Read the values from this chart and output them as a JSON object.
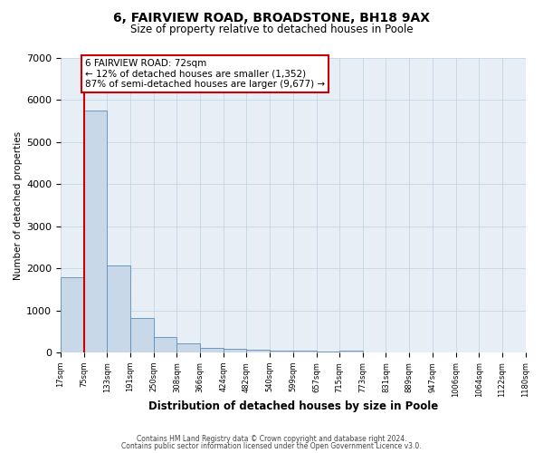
{
  "title": "6, FAIRVIEW ROAD, BROADSTONE, BH18 9AX",
  "subtitle": "Size of property relative to detached houses in Poole",
  "xlabel": "Distribution of detached houses by size in Poole",
  "ylabel": "Number of detached properties",
  "bin_edges": [
    17,
    75,
    133,
    191,
    250,
    308,
    366,
    424,
    482,
    540,
    599,
    657,
    715,
    773,
    831,
    889,
    947,
    1006,
    1064,
    1122,
    1180
  ],
  "bin_labels": [
    "17sqm",
    "75sqm",
    "133sqm",
    "191sqm",
    "250sqm",
    "308sqm",
    "366sqm",
    "424sqm",
    "482sqm",
    "540sqm",
    "599sqm",
    "657sqm",
    "715sqm",
    "773sqm",
    "831sqm",
    "889sqm",
    "947sqm",
    "1006sqm",
    "1064sqm",
    "1122sqm",
    "1180sqm"
  ],
  "bar_heights": [
    1780,
    5760,
    2060,
    820,
    360,
    215,
    115,
    95,
    75,
    50,
    40,
    30,
    55,
    0,
    0,
    0,
    0,
    0,
    0,
    0
  ],
  "bar_color": "#c8d8e8",
  "bar_edge_color": "#5b8db8",
  "property_line_x": 75,
  "property_line_color": "#cc0000",
  "annotation_title": "6 FAIRVIEW ROAD: 72sqm",
  "annotation_line1": "← 12% of detached houses are smaller (1,352)",
  "annotation_line2": "87% of semi-detached houses are larger (9,677) →",
  "annotation_box_color": "#cc0000",
  "annotation_box_fill": "#ffffff",
  "ylim": [
    0,
    7000
  ],
  "yticks": [
    0,
    1000,
    2000,
    3000,
    4000,
    5000,
    6000,
    7000
  ],
  "grid_color": "#c5d5e5",
  "bg_color": "#e8eef5",
  "footer_line1": "Contains HM Land Registry data © Crown copyright and database right 2024.",
  "footer_line2": "Contains public sector information licensed under the Open Government Licence v3.0."
}
